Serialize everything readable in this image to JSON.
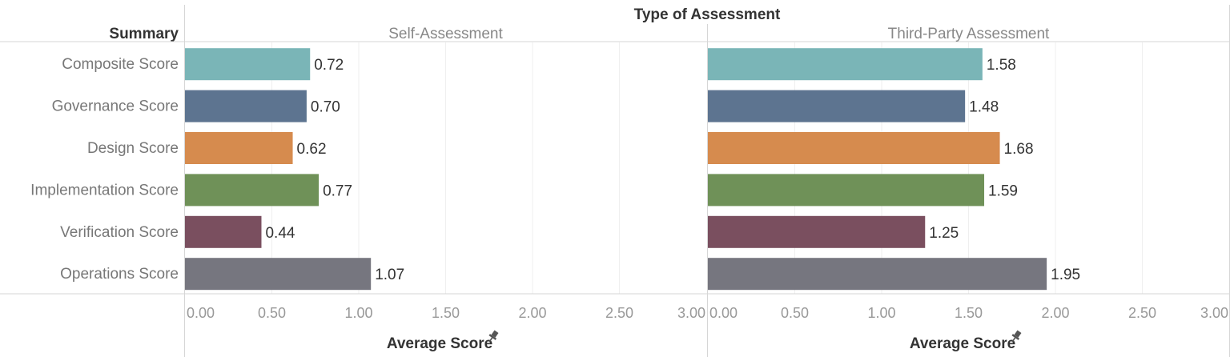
{
  "chart_data": {
    "type": "bar",
    "orientation": "horizontal",
    "title": "Type of Assessment",
    "row_header": "Summary",
    "categories": [
      "Composite Score",
      "Governance Score",
      "Design Score",
      "Implementation Score",
      "Verification Score",
      "Operations Score"
    ],
    "colors": [
      "#7ab5b7",
      "#5d7490",
      "#d68b4e",
      "#6f9158",
      "#7a4f5f",
      "#76767f"
    ],
    "panels": [
      {
        "name": "Self-Assessment",
        "values": [
          0.72,
          0.7,
          0.62,
          0.77,
          0.44,
          1.07
        ]
      },
      {
        "name": "Third-Party Assessment",
        "values": [
          1.58,
          1.48,
          1.68,
          1.59,
          1.25,
          1.95
        ]
      }
    ],
    "xlabel": "Average Score",
    "xlabel_icon": "pin-icon",
    "xlim": [
      0,
      3
    ],
    "xticks": [
      "0.00",
      "0.50",
      "1.00",
      "1.50",
      "2.00",
      "2.50",
      "3.00"
    ],
    "value_labels": [
      [
        "0.72",
        "0.70",
        "0.62",
        "0.77",
        "0.44",
        "1.07"
      ],
      [
        "1.58",
        "1.48",
        "1.68",
        "1.59",
        "1.25",
        "1.95"
      ]
    ],
    "grid": true,
    "legend": "none"
  }
}
